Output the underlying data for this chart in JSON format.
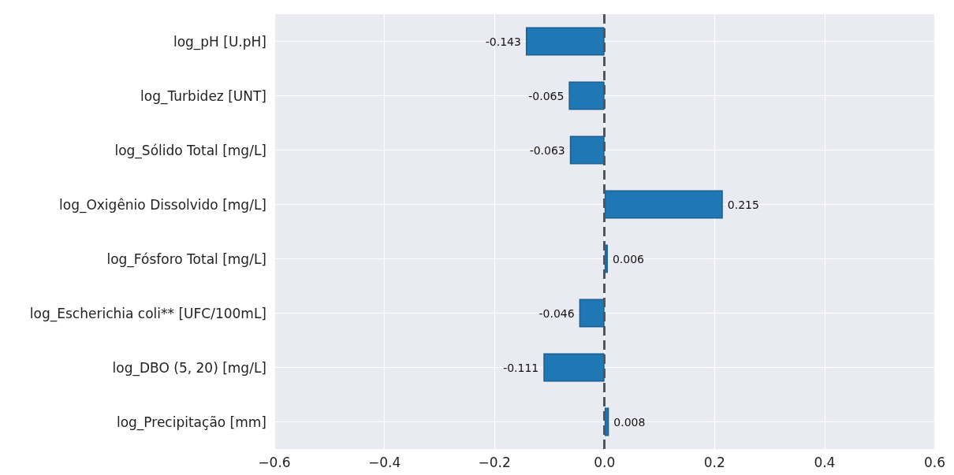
{
  "chart_data": {
    "type": "bar",
    "orientation": "horizontal",
    "categories": [
      "log_pH [U.pH]",
      "log_Turbidez [UNT]",
      "log_Sólido Total [mg/L]",
      "log_Oxigênio Dissolvido [mg/L]",
      "log_Fósforo Total [mg/L]",
      "log_Escherichia coli** [UFC/100mL]",
      "log_DBO (5, 20) [mg/L]",
      "log_Precipitação [mm]"
    ],
    "values": [
      -0.143,
      -0.065,
      -0.063,
      0.215,
      0.006,
      -0.046,
      -0.111,
      0.008
    ],
    "color": "#1f77b4",
    "xlim": [
      -0.6,
      0.6
    ],
    "xticks": [
      {
        "value": -0.6,
        "label": "−0.6"
      },
      {
        "value": -0.4,
        "label": "−0.4"
      },
      {
        "value": -0.2,
        "label": "−0.2"
      },
      {
        "value": 0,
        "label": "0.0"
      },
      {
        "value": 0.2,
        "label": "0.2"
      },
      {
        "value": 0.4,
        "label": "0.4"
      },
      {
        "value": 0.6,
        "label": "0.6"
      }
    ],
    "grid": true,
    "data_labels": true,
    "ref_lines": [
      {
        "axis": "x",
        "value": 0,
        "color": "#555555",
        "line_style": "dashed"
      }
    ]
  }
}
